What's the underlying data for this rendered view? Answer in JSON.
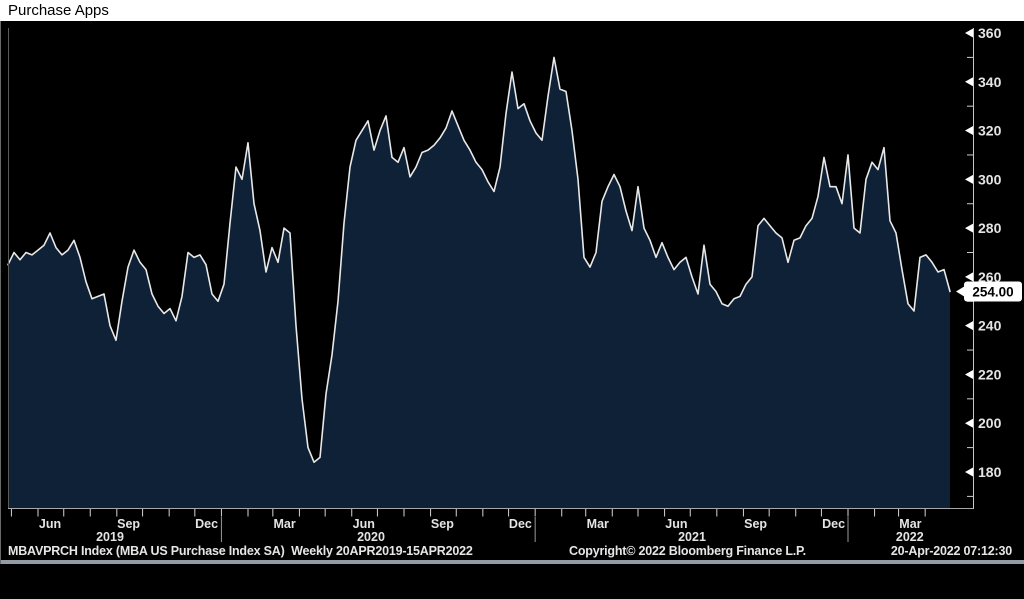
{
  "title": "Purchase Apps",
  "last_value_label": "254.00",
  "footer": {
    "left": "MBAVPRCH Index (MBA US Purchase Index SA)  Weekly 20APR2019-15APR2022",
    "center": "Copyright© 2022 Bloomberg Finance L.P.",
    "right": "20-Apr-2022 07:12:30"
  },
  "colors": {
    "background": "#000000",
    "title_bg": "#ffffff",
    "title_text": "#000000",
    "area_fill": "#0e2136",
    "line": "#e8e8e8",
    "axis": "#c8c8c8",
    "tick_text": "#e4e4e4",
    "value_tag_bg": "#ffffff",
    "value_tag_text": "#000000",
    "bottom_bar": "#949ba5",
    "year_separator": "#9a9a9a"
  },
  "chart_data": {
    "type": "area",
    "title": "Purchase Apps",
    "series_name": "MBAVPRCH Index (MBA US Purchase Index SA)",
    "frequency": "Weekly",
    "period": "20APR2019-15APR2022",
    "x_start": "2019-04-20",
    "x_end": "2022-04-15",
    "last_value": 254.0,
    "ylabel": "",
    "xlabel": "",
    "grid": false,
    "legend": "none",
    "y_axis": {
      "min": 180,
      "max": 360,
      "major_step": 20,
      "minor_step": 10,
      "labels": [
        "360",
        "340",
        "320",
        "300",
        "280",
        "260",
        "240",
        "220",
        "200",
        "180"
      ],
      "side": "right"
    },
    "x_labels": [
      {
        "label": "Jun",
        "week": 8
      },
      {
        "label": "Sep",
        "week": 21.1
      },
      {
        "label": "Dec",
        "week": 34.1
      },
      {
        "label": "Mar",
        "week": 47.1
      },
      {
        "label": "Jun",
        "week": 60.3
      },
      {
        "label": "Sep",
        "week": 73.4
      },
      {
        "label": "Dec",
        "week": 86.4
      },
      {
        "label": "Mar",
        "week": 99.3
      },
      {
        "label": "Jun",
        "week": 112.4
      },
      {
        "label": "Sep",
        "week": 125.6
      },
      {
        "label": "Dec",
        "week": 138.6
      },
      {
        "label": "Mar",
        "week": 151.4
      }
    ],
    "year_labels": [
      {
        "label": "2019",
        "week": 18
      },
      {
        "label": "2020",
        "week": 61.5
      },
      {
        "label": "2021",
        "week": 115
      },
      {
        "label": "2022",
        "week": 151.3
      }
    ],
    "month_ticks_weeks": [
      1.57,
      6,
      10.29,
      14.71,
      19.14,
      23.43,
      27.86,
      32.14,
      36.57,
      41,
      45.14,
      49.57,
      53.86,
      58.29,
      62.57,
      67,
      71.43,
      75.71,
      80.14,
      84.43,
      88.86,
      93.29,
      97.29,
      101.71,
      106,
      110.43,
      114.71,
      119.14,
      123.57,
      127.86,
      132.29,
      136.57,
      141,
      145.43,
      149.43,
      153.86
    ],
    "year_separators_weeks": [
      36.57,
      88.86,
      141
    ],
    "values": [
      265,
      270,
      267,
      270,
      269,
      271,
      273,
      278,
      272,
      269,
      271,
      275,
      268,
      258,
      251,
      252,
      253,
      240,
      234,
      250,
      264,
      271,
      266,
      263,
      253,
      248,
      245,
      247,
      242,
      252,
      270,
      268,
      269,
      265,
      253,
      250,
      257,
      282,
      305,
      300,
      315,
      290,
      279,
      262,
      272,
      266,
      280,
      278,
      240,
      210,
      190,
      184,
      186,
      212,
      228,
      250,
      282,
      305,
      316,
      320,
      324,
      312,
      320,
      326,
      309,
      307,
      313,
      301,
      305,
      311,
      312,
      314,
      317,
      321,
      328,
      322,
      316,
      312,
      307,
      304,
      299,
      295,
      305,
      327,
      344,
      329,
      331,
      324,
      319,
      316,
      334,
      350,
      337,
      336,
      320,
      300,
      268,
      264,
      270,
      291,
      297,
      302,
      297,
      287,
      279,
      297,
      280,
      275,
      268,
      274,
      268,
      263,
      266,
      268,
      260,
      253,
      273,
      257,
      254,
      249,
      248,
      251,
      252,
      257,
      260,
      281,
      284,
      281,
      278,
      276,
      266,
      275,
      276,
      281,
      284,
      293,
      309,
      297,
      297,
      290,
      310,
      280,
      278,
      300,
      307,
      304,
      313,
      283,
      278,
      263,
      249,
      246,
      268,
      269,
      266,
      262,
      263,
      254
    ]
  }
}
